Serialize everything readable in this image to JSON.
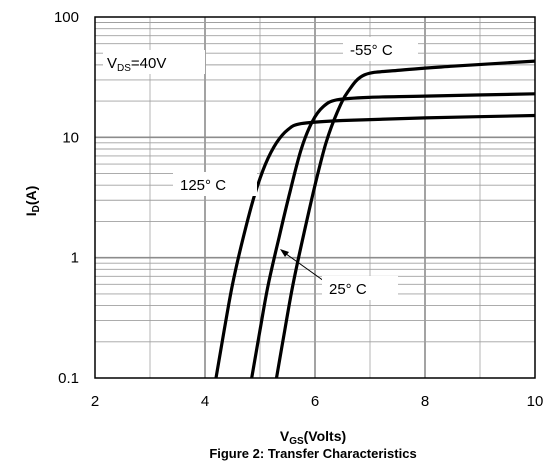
{
  "chart_data": {
    "type": "line",
    "title": "Figure 2: Transfer Characteristics",
    "xlabel": {
      "main": "V",
      "sub": "GS",
      "rest": "(Volts)"
    },
    "ylabel": {
      "main": "I",
      "sub": "D",
      "rest": "(A)"
    },
    "xlim": [
      2,
      10
    ],
    "ylim": [
      0.1,
      100
    ],
    "yscale": "log",
    "grid": true,
    "x_ticks": [
      "2",
      "4",
      "6",
      "8",
      "10"
    ],
    "y_ticks": [
      "0.1",
      "1",
      "10",
      "100"
    ],
    "annotations": {
      "vds": {
        "main": "V",
        "sub": "DS",
        "rest": "=40V"
      },
      "t_neg55": "-55° C",
      "t_125": "125° C",
      "t_25": "25° C"
    },
    "series": [
      {
        "name": "-55° C",
        "x": [
          5.3,
          5.45,
          5.6,
          5.8,
          6.0,
          6.2,
          6.4,
          6.6,
          6.9,
          7.5,
          8.5,
          10.0
        ],
        "y": [
          0.1,
          0.25,
          0.6,
          1.6,
          4.0,
          9.0,
          16.0,
          24.0,
          33.0,
          36.0,
          39.0,
          43.0
        ]
      },
      {
        "name": "25° C",
        "x": [
          4.85,
          5.0,
          5.15,
          5.35,
          5.55,
          5.75,
          5.95,
          6.15,
          6.4,
          7.0,
          8.0,
          10.0
        ],
        "y": [
          0.1,
          0.25,
          0.6,
          1.5,
          3.6,
          8.0,
          13.5,
          18.0,
          20.5,
          21.5,
          22.0,
          23.0
        ]
      },
      {
        "name": "125° C",
        "x": [
          4.2,
          4.35,
          4.5,
          4.7,
          4.9,
          5.1,
          5.3,
          5.5,
          5.75,
          6.5,
          8.0,
          10.0
        ],
        "y": [
          0.1,
          0.25,
          0.6,
          1.5,
          3.3,
          6.0,
          9.0,
          11.5,
          13.0,
          13.8,
          14.5,
          15.2
        ]
      }
    ]
  }
}
